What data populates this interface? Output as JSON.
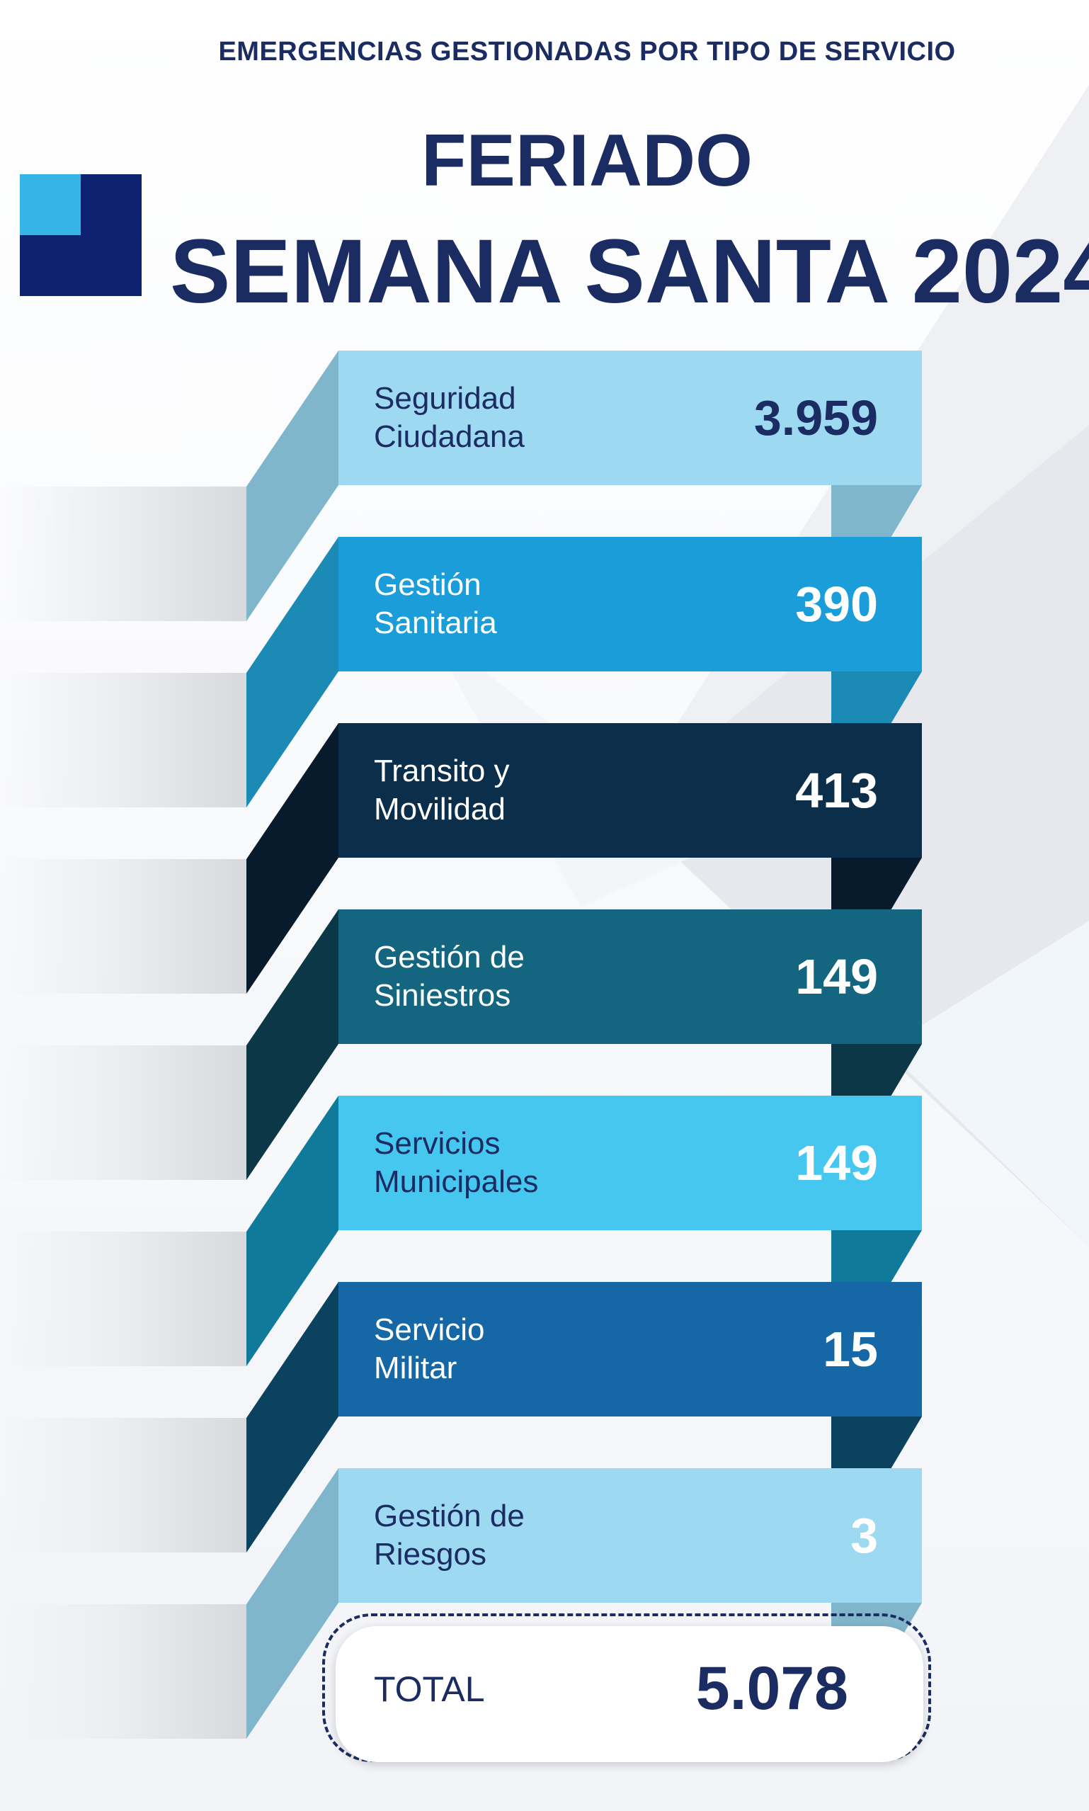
{
  "header": {
    "subtitle": "EMERGENCIAS GESTIONADAS POR TIPO DE SERVICIO",
    "title_line1": "FERIADO",
    "title_line2": "SEMANA SANTA 2024"
  },
  "colors": {
    "brand_navy": "#1b2c63",
    "logo_dark": "#0d2271",
    "logo_light": "#36b4e8"
  },
  "services": [
    {
      "label": "Seguridad\nCiudadana",
      "value": "3.959",
      "front": "#9ed9f2",
      "side": "#80b6cc",
      "text": "#1b2c63",
      "value_color": "#1b2c63"
    },
    {
      "label": "Gestión\nSanitaria",
      "value": "390",
      "front": "#1a9dd9",
      "side": "#1b8ab4",
      "text": "#ffffff",
      "value_color": "#ffffff"
    },
    {
      "label": "Transito y\nMovilidad",
      "value": "413",
      "front": "#0b2f4a",
      "side": "#081b2c",
      "text": "#ffffff",
      "value_color": "#ffffff"
    },
    {
      "label": "Gestión de\nSiniestros",
      "value": "149",
      "front": "#146680",
      "side": "#0b3746",
      "text": "#ffffff",
      "value_color": "#ffffff"
    },
    {
      "label": "Servicios\nMunicipales",
      "value": "149",
      "front": "#46c7ef",
      "side": "#0f7a9a",
      "text": "#1b2c63",
      "value_color": "#ffffff"
    },
    {
      "label": "Servicio\nMilitar",
      "value": "15",
      "front": "#1667a5",
      "side": "#0a4260",
      "text": "#ffffff",
      "value_color": "#ffffff"
    },
    {
      "label": "Gestión de\nRiesgos",
      "value": "3",
      "front": "#9ed9f2",
      "side": "#80b6cc",
      "text": "#1b2c63",
      "value_color": "#ffffff"
    }
  ],
  "total": {
    "label": "TOTAL",
    "value": "5.078"
  }
}
